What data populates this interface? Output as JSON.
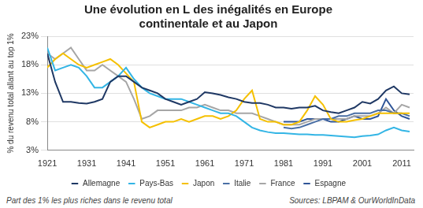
{
  "chart_data": {
    "type": "line",
    "title": [
      "Une évolution en L des inégalités en Europe",
      "continentale et au Japon"
    ],
    "y_label": "% du revenu total allant au top 1%",
    "annotations": [
      "Part des 1% les plus riches  dans le revenu total",
      "Sources: LBPAM & OurWorldInData"
    ],
    "x": [
      1921,
      1923,
      1925,
      1927,
      1929,
      1931,
      1933,
      1935,
      1937,
      1939,
      1941,
      1943,
      1945,
      1947,
      1949,
      1951,
      1953,
      1955,
      1957,
      1959,
      1961,
      1963,
      1965,
      1967,
      1969,
      1971,
      1973,
      1975,
      1977,
      1979,
      1981,
      1983,
      1985,
      1987,
      1989,
      1991,
      1993,
      1995,
      1997,
      1999,
      2001,
      2003,
      2005,
      2007,
      2009,
      2011,
      2013
    ],
    "series": [
      {
        "name": "Allemagne",
        "color": "#1f3864",
        "values": [
          20,
          15,
          11.5,
          11.5,
          11.3,
          11.2,
          11.5,
          12,
          15,
          16,
          16,
          15,
          14,
          13.5,
          13,
          12,
          11.5,
          11,
          11.5,
          12,
          13.2,
          13,
          12.7,
          12.3,
          12,
          11.5,
          11.3,
          11.3,
          11,
          10.5,
          10.5,
          10.3,
          10.5,
          10.5,
          10.8,
          10,
          9.7,
          9.5,
          10,
          10.5,
          11.5,
          11.2,
          12,
          13.5,
          14.2,
          13,
          12.8
        ]
      },
      {
        "name": "Pays-Bas",
        "color": "#33b5e5",
        "values": [
          21,
          17,
          17.5,
          18,
          17.5,
          16,
          14,
          14,
          15,
          16,
          17.5,
          15.5,
          14,
          13,
          12.5,
          12,
          12,
          12,
          11.5,
          11,
          10.5,
          10,
          9.5,
          9.5,
          9,
          8,
          7,
          6.5,
          6.2,
          6,
          6,
          5.9,
          5.8,
          5.8,
          5.7,
          5.7,
          5.6,
          5.5,
          5.4,
          5.3,
          5.5,
          5.6,
          5.8,
          6.5,
          7,
          6.5,
          6.3
        ]
      },
      {
        "name": "Japon",
        "color": "#f5c000",
        "values": [
          17.5,
          19,
          20,
          19,
          18,
          17.5,
          18,
          18.5,
          19,
          18,
          16.5,
          15,
          8,
          7,
          7.5,
          8,
          8,
          8.5,
          8,
          8.5,
          9,
          9,
          8.5,
          9,
          10,
          12,
          13.5,
          8.5,
          8,
          8,
          7.5,
          7.5,
          8,
          10,
          12.5,
          11,
          8.5,
          8,
          8,
          8.3,
          8.5,
          9,
          9.5,
          9.5,
          9.5,
          9.5,
          9.5
        ]
      },
      {
        "name": "Italie",
        "color": "#4a6fa5",
        "values": [
          null,
          null,
          null,
          null,
          null,
          null,
          null,
          null,
          null,
          null,
          null,
          null,
          null,
          null,
          null,
          null,
          null,
          null,
          null,
          null,
          null,
          null,
          null,
          null,
          null,
          null,
          null,
          null,
          null,
          null,
          7,
          6.8,
          7,
          7.5,
          8,
          8.5,
          8.5,
          9,
          9,
          9.5,
          9.5,
          9.5,
          10,
          10,
          9.5,
          9.5,
          9
        ]
      },
      {
        "name": "France",
        "color": "#a6a6a6",
        "values": [
          20,
          19,
          20,
          21,
          19,
          17,
          17,
          18,
          17,
          16,
          15,
          12,
          8.5,
          9,
          10,
          10,
          10,
          10,
          10.5,
          10.5,
          11,
          10.5,
          10,
          10,
          9.5,
          9.5,
          9.5,
          9,
          8.5,
          8,
          7.5,
          7.5,
          7.5,
          8,
          8.5,
          8.5,
          8.5,
          8.5,
          8.5,
          9,
          9,
          9,
          9.5,
          10.5,
          9.5,
          11,
          10.5
        ]
      },
      {
        "name": "Espagne",
        "color": "#2f5597",
        "values": [
          null,
          null,
          null,
          null,
          null,
          null,
          null,
          null,
          null,
          null,
          null,
          null,
          null,
          null,
          null,
          null,
          null,
          null,
          null,
          null,
          null,
          null,
          null,
          null,
          null,
          null,
          null,
          null,
          null,
          null,
          8,
          8,
          8,
          8.5,
          8.5,
          8.5,
          8,
          8,
          8.5,
          9,
          8.5,
          8.5,
          9,
          12,
          10,
          9,
          8.5
        ]
      }
    ],
    "xlim": [
      1921,
      2014
    ],
    "xticks": [
      1921,
      1931,
      1941,
      1951,
      1961,
      1971,
      1981,
      1991,
      2001,
      2011
    ],
    "ylim": [
      3,
      23
    ],
    "yticks": [
      {
        "value": 3,
        "label": "3%"
      },
      {
        "value": 8,
        "label": "8%"
      },
      {
        "value": 13,
        "label": "13%"
      },
      {
        "value": 18,
        "label": "18%"
      },
      {
        "value": 23,
        "label": "23%"
      }
    ],
    "grid": true,
    "legend": "bottom"
  }
}
